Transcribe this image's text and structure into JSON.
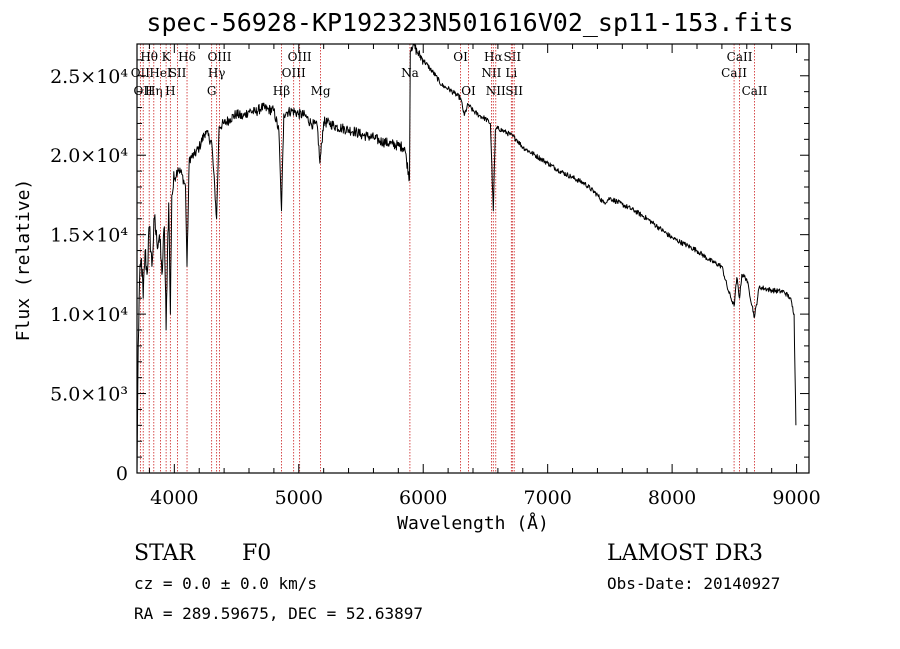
{
  "chart_data": {
    "type": "line",
    "title": "spec-56928-KP192323N501616V02_sp11-153.fits",
    "xlabel": "Wavelength (Å)",
    "ylabel": "Flux (relative)",
    "xlim": [
      3700,
      9100
    ],
    "ylim": [
      0,
      27000
    ],
    "x_ticks": [
      {
        "value": 4000,
        "label": "4000"
      },
      {
        "value": 5000,
        "label": "5000"
      },
      {
        "value": 6000,
        "label": "6000"
      },
      {
        "value": 7000,
        "label": "7000"
      },
      {
        "value": 8000,
        "label": "8000"
      },
      {
        "value": 9000,
        "label": "9000"
      }
    ],
    "y_ticks": [
      {
        "value": 0,
        "label": "0"
      },
      {
        "value": 5000,
        "label": "5.0×10³"
      },
      {
        "value": 10000,
        "label": "1.0×10⁴"
      },
      {
        "value": 15000,
        "label": "1.5×10⁴"
      },
      {
        "value": 20000,
        "label": "2.0×10⁴"
      },
      {
        "value": 25000,
        "label": "2.5×10⁴"
      }
    ],
    "series": [
      {
        "name": "flux",
        "x": [
          3700,
          3710,
          3720,
          3735,
          3750,
          3765,
          3780,
          3800,
          3820,
          3840,
          3860,
          3880,
          3900,
          3920,
          3934,
          3945,
          3955,
          3968,
          3980,
          4000,
          4030,
          4060,
          4090,
          4102,
          4120,
          4160,
          4200,
          4250,
          4300,
          4340,
          4360,
          4400,
          4450,
          4500,
          4550,
          4600,
          4650,
          4700,
          4750,
          4800,
          4840,
          4861,
          4880,
          4900,
          4950,
          5000,
          5050,
          5100,
          5150,
          5170,
          5200,
          5250,
          5300,
          5350,
          5400,
          5450,
          5500,
          5550,
          5600,
          5650,
          5700,
          5750,
          5800,
          5850,
          5890,
          5896,
          5905,
          5920,
          5950,
          6000,
          6050,
          6100,
          6150,
          6200,
          6250,
          6300,
          6330,
          6360,
          6400,
          6450,
          6500,
          6540,
          6563,
          6580,
          6600,
          6650,
          6700,
          6750,
          6800,
          6900,
          7000,
          7100,
          7200,
          7300,
          7400,
          7450,
          7500,
          7600,
          7700,
          7800,
          7900,
          8000,
          8100,
          8200,
          8300,
          8400,
          8450,
          8498,
          8520,
          8542,
          8560,
          8600,
          8662,
          8700,
          8800,
          8900,
          8950,
          8980,
          8995
        ],
        "y": [
          0,
          8000,
          12000,
          13500,
          11000,
          14000,
          12500,
          15500,
          13000,
          16000,
          14500,
          15000,
          12500,
          15500,
          9000,
          14000,
          17000,
          10000,
          17500,
          18500,
          19200,
          18800,
          18000,
          13000,
          19800,
          20000,
          20500,
          21500,
          20800,
          16000,
          21800,
          22000,
          22300,
          22600,
          22400,
          22800,
          22700,
          23000,
          22900,
          22800,
          21500,
          16500,
          22600,
          22700,
          22800,
          22600,
          22500,
          22000,
          21800,
          19500,
          22100,
          22000,
          21800,
          21700,
          21600,
          21500,
          21300,
          21200,
          21100,
          20900,
          20800,
          20700,
          20600,
          20500,
          18500,
          26500,
          26800,
          27000,
          26500,
          26000,
          25500,
          25000,
          24400,
          24200,
          23900,
          23600,
          22500,
          23200,
          22800,
          22500,
          22300,
          22000,
          16500,
          21600,
          21700,
          21500,
          21300,
          21000,
          20500,
          20000,
          19500,
          19000,
          18600,
          18200,
          17500,
          17000,
          17300,
          16900,
          16500,
          16000,
          15400,
          14800,
          14400,
          14000,
          13400,
          13000,
          11500,
          10500,
          12300,
          11000,
          12500,
          12200,
          9800,
          11700,
          11500,
          11400,
          11000,
          10000,
          3000
        ]
      }
    ],
    "spectral_lines": [
      {
        "wavelength": 3727,
        "label": "OII",
        "row": 1
      },
      {
        "wavelength": 3750,
        "label": "OII",
        "row": 2
      },
      {
        "wavelength": 3798,
        "label": "Hθ",
        "row": 0
      },
      {
        "wavelength": 3835,
        "label": "Hη",
        "row": 2
      },
      {
        "wavelength": 3889,
        "label": "HeI",
        "row": 1
      },
      {
        "wavelength": 3934,
        "label": "K",
        "row": 0
      },
      {
        "wavelength": 3968,
        "label": "H",
        "row": 2
      },
      {
        "wavelength": 4026,
        "label": "SII",
        "row": 1
      },
      {
        "wavelength": 4102,
        "label": "Hδ",
        "row": 0
      },
      {
        "wavelength": 4300,
        "label": "G",
        "row": 2
      },
      {
        "wavelength": 4340,
        "label": "Hγ",
        "row": 1
      },
      {
        "wavelength": 4363,
        "label": "OIII",
        "row": 0
      },
      {
        "wavelength": 4861,
        "label": "Hβ",
        "row": 2
      },
      {
        "wavelength": 4959,
        "label": "OIII",
        "row": 1
      },
      {
        "wavelength": 5007,
        "label": "OIII",
        "row": 0
      },
      {
        "wavelength": 5175,
        "label": "Mg",
        "row": 2
      },
      {
        "wavelength": 5893,
        "label": "Na",
        "row": 1
      },
      {
        "wavelength": 6300,
        "label": "OI",
        "row": 0
      },
      {
        "wavelength": 6364,
        "label": "OI",
        "row": 2
      },
      {
        "wavelength": 6548,
        "label": "NII",
        "row": 1
      },
      {
        "wavelength": 6563,
        "label": "Hα",
        "row": 0
      },
      {
        "wavelength": 6583,
        "label": "NII",
        "row": 2
      },
      {
        "wavelength": 6708,
        "label": "Li",
        "row": 1
      },
      {
        "wavelength": 6716,
        "label": "SII",
        "row": 0
      },
      {
        "wavelength": 6731,
        "label": "SII",
        "row": 2
      },
      {
        "wavelength": 8498,
        "label": "CaII",
        "row": 1
      },
      {
        "wavelength": 8542,
        "label": "CaII",
        "row": 0
      },
      {
        "wavelength": 8662,
        "label": "CaII",
        "row": 2
      }
    ]
  },
  "info": {
    "object_class": "STAR",
    "subclass": "F0",
    "survey": "LAMOST DR3",
    "redshift": "cz = 0.0 ± 0.0 km/s",
    "obs_date": "Obs-Date: 20140927",
    "coords": "RA = 289.59675, DEC =  52.63897"
  },
  "colors": {
    "line_marker": "#cc2222",
    "spectrum": "#000000",
    "axes": "#000000"
  }
}
